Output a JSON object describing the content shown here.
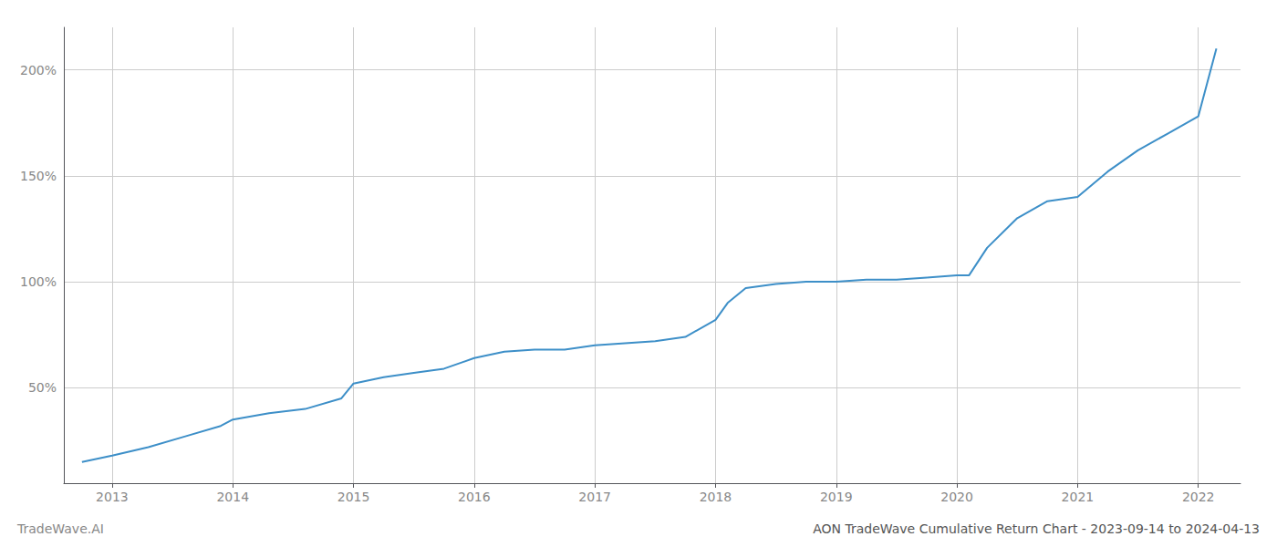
{
  "chart_data": {
    "type": "line",
    "title": "AON TradeWave Cumulative Return Chart - 2023-09-14 to 2024-04-13",
    "annotations": [
      "TradeWave.AI"
    ],
    "x": [
      2012.75,
      2013.0,
      2013.3,
      2013.6,
      2013.9,
      2014.0,
      2014.3,
      2014.6,
      2014.9,
      2015.0,
      2015.25,
      2015.5,
      2015.75,
      2016.0,
      2016.25,
      2016.5,
      2016.75,
      2017.0,
      2017.25,
      2017.5,
      2017.75,
      2018.0,
      2018.1,
      2018.25,
      2018.5,
      2018.75,
      2019.0,
      2019.25,
      2019.5,
      2019.75,
      2020.0,
      2020.1,
      2020.25,
      2020.5,
      2020.75,
      2021.0,
      2021.25,
      2021.5,
      2021.75,
      2022.0,
      2022.15
    ],
    "values": [
      15,
      18,
      22,
      27,
      32,
      35,
      38,
      40,
      45,
      52,
      55,
      57,
      59,
      64,
      67,
      68,
      68,
      70,
      71,
      72,
      74,
      82,
      90,
      97,
      99,
      100,
      100,
      101,
      101,
      102,
      103,
      103,
      116,
      130,
      138,
      140,
      152,
      162,
      170,
      178,
      210
    ],
    "color": "#3d8fc8",
    "xlim": [
      2012.6,
      2022.35
    ],
    "xticks": [
      2013,
      2014,
      2015,
      2016,
      2017,
      2018,
      2019,
      2020,
      2021,
      2022
    ],
    "ylim": [
      5,
      220
    ],
    "yticks": [
      {
        "value": 50,
        "label": "50%"
      },
      {
        "value": 100,
        "label": "100%"
      },
      {
        "value": 150,
        "label": "150%"
      },
      {
        "value": 200,
        "label": "200%"
      }
    ],
    "grid": true
  }
}
